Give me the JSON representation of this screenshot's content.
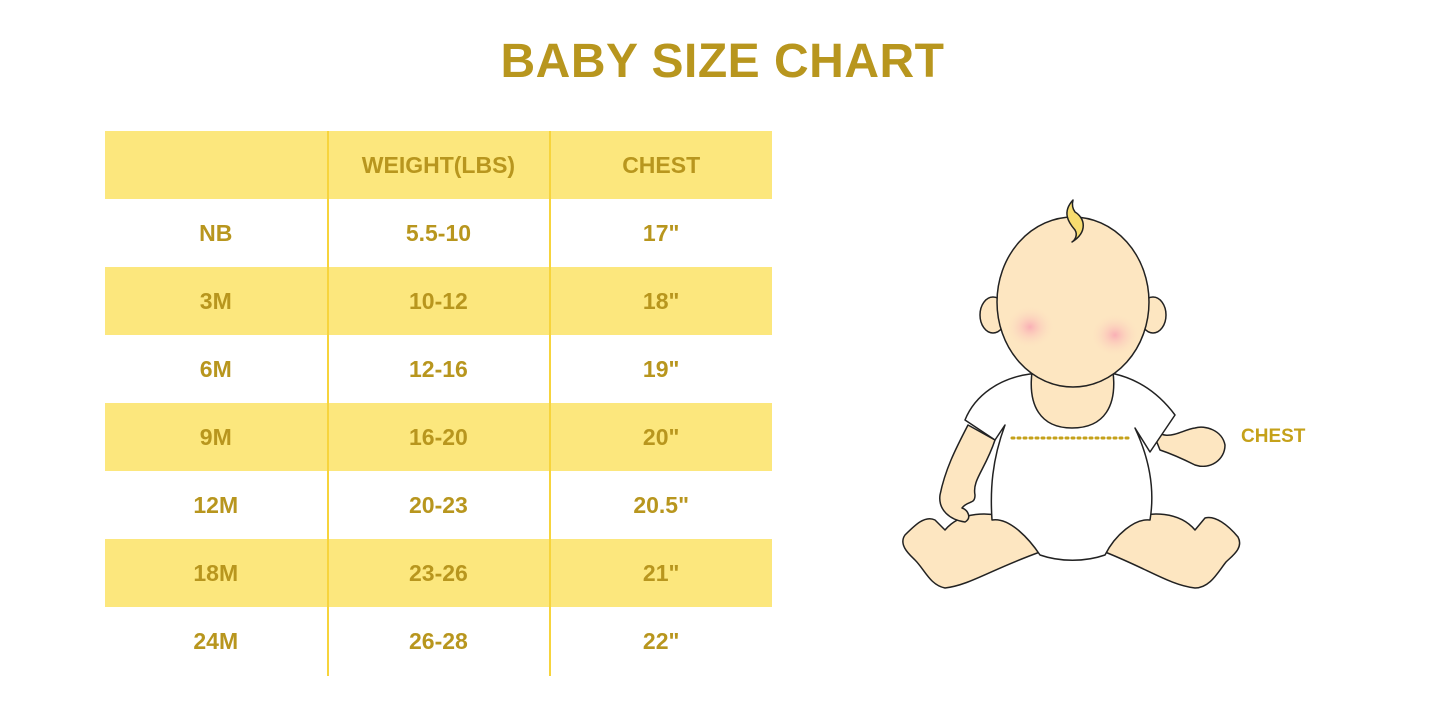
{
  "title": "BABY SIZE CHART",
  "table": {
    "headers": [
      "",
      "WEIGHT(LBS)",
      "CHEST"
    ],
    "rows": [
      [
        "NB",
        "5.5-10",
        "17\""
      ],
      [
        "3M",
        "10-12",
        "18\""
      ],
      [
        "6M",
        "12-16",
        "19\""
      ],
      [
        "9M",
        "16-20",
        "20\""
      ],
      [
        "12M",
        "20-23",
        "20.5\""
      ],
      [
        "18M",
        "23-26",
        "21\""
      ],
      [
        "24M",
        "26-28",
        "22\""
      ]
    ]
  },
  "illustration": {
    "chest_label": "CHEST"
  },
  "colors": {
    "text": "#B8961E",
    "stripe": "#FCE77D",
    "skin": "#FDE6C1"
  }
}
